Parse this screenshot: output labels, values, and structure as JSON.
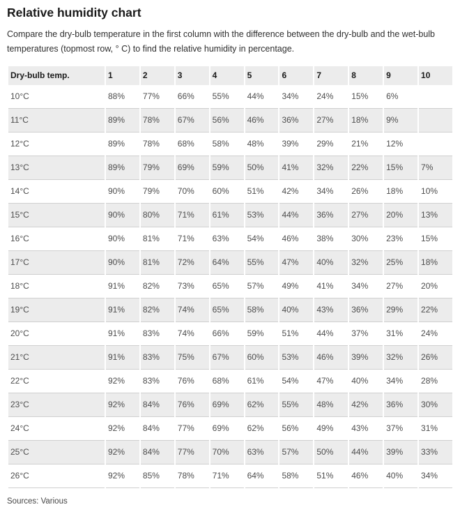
{
  "page": {
    "title": "Relative humidity chart",
    "description": "Compare the dry-bulb temperature in the first column with the difference between the dry-bulb and the wet-bulb temperatures (topmost row, ° C) to find the relative humidity in percentage.",
    "source": "Sources: Various"
  },
  "colors": {
    "header_bg": "#ececec",
    "stripe_bg": "#ececec",
    "row_border": "#cfcfcf",
    "title_text": "#1a1a1a",
    "desc_text": "#2e2e2e",
    "cell_text": "#4d4d4d",
    "source_text": "#454545"
  },
  "chart_data": {
    "type": "table",
    "title": "Relative humidity chart",
    "columns": [
      "Dry-bulb temp.",
      "1",
      "2",
      "3",
      "4",
      "5",
      "6",
      "7",
      "8",
      "9",
      "10"
    ],
    "rows": [
      {
        "label": "10°C",
        "values": [
          "88%",
          "77%",
          "66%",
          "55%",
          "44%",
          "34%",
          "24%",
          "15%",
          "6%",
          ""
        ]
      },
      {
        "label": "11°C",
        "values": [
          "89%",
          "78%",
          "67%",
          "56%",
          "46%",
          "36%",
          "27%",
          "18%",
          "9%",
          ""
        ]
      },
      {
        "label": "12°C",
        "values": [
          "89%",
          "78%",
          "68%",
          "58%",
          "48%",
          "39%",
          "29%",
          "21%",
          "12%",
          ""
        ]
      },
      {
        "label": "13°C",
        "values": [
          "89%",
          "79%",
          "69%",
          "59%",
          "50%",
          "41%",
          "32%",
          "22%",
          "15%",
          "7%"
        ]
      },
      {
        "label": "14°C",
        "values": [
          "90%",
          "79%",
          "70%",
          "60%",
          "51%",
          "42%",
          "34%",
          "26%",
          "18%",
          "10%"
        ]
      },
      {
        "label": "15°C",
        "values": [
          "90%",
          "80%",
          "71%",
          "61%",
          "53%",
          "44%",
          "36%",
          "27%",
          "20%",
          "13%"
        ]
      },
      {
        "label": "16°C",
        "values": [
          "90%",
          "81%",
          "71%",
          "63%",
          "54%",
          "46%",
          "38%",
          "30%",
          "23%",
          "15%"
        ]
      },
      {
        "label": "17°C",
        "values": [
          "90%",
          "81%",
          "72%",
          "64%",
          "55%",
          "47%",
          "40%",
          "32%",
          "25%",
          "18%"
        ]
      },
      {
        "label": "18°C",
        "values": [
          "91%",
          "82%",
          "73%",
          "65%",
          "57%",
          "49%",
          "41%",
          "34%",
          "27%",
          "20%"
        ]
      },
      {
        "label": "19°C",
        "values": [
          "91%",
          "82%",
          "74%",
          "65%",
          "58%",
          "40%",
          "43%",
          "36%",
          "29%",
          "22%"
        ]
      },
      {
        "label": "20°C",
        "values": [
          "91%",
          "83%",
          "74%",
          "66%",
          "59%",
          "51%",
          "44%",
          "37%",
          "31%",
          "24%"
        ]
      },
      {
        "label": "21°C",
        "values": [
          "91%",
          "83%",
          "75%",
          "67%",
          "60%",
          "53%",
          "46%",
          "39%",
          "32%",
          "26%"
        ]
      },
      {
        "label": "22°C",
        "values": [
          "92%",
          "83%",
          "76%",
          "68%",
          "61%",
          "54%",
          "47%",
          "40%",
          "34%",
          "28%"
        ]
      },
      {
        "label": "23°C",
        "values": [
          "92%",
          "84%",
          "76%",
          "69%",
          "62%",
          "55%",
          "48%",
          "42%",
          "36%",
          "30%"
        ]
      },
      {
        "label": "24°C",
        "values": [
          "92%",
          "84%",
          "77%",
          "69%",
          "62%",
          "56%",
          "49%",
          "43%",
          "37%",
          "31%"
        ]
      },
      {
        "label": "25°C",
        "values": [
          "92%",
          "84%",
          "77%",
          "70%",
          "63%",
          "57%",
          "50%",
          "44%",
          "39%",
          "33%"
        ]
      },
      {
        "label": "26°C",
        "values": [
          "92%",
          "85%",
          "78%",
          "71%",
          "64%",
          "58%",
          "51%",
          "46%",
          "40%",
          "34%"
        ]
      }
    ]
  }
}
